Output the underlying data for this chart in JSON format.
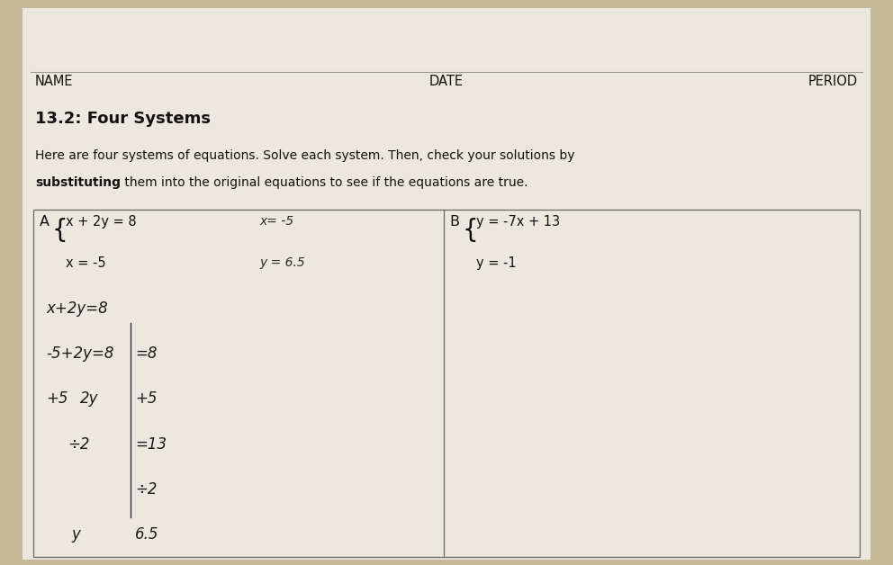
{
  "background_color": "#c8b99a",
  "paper_color": "#ede8df",
  "name_label": "NAME",
  "date_label": "DATE",
  "period_label": "PERIOD",
  "title": "13.2: Four Systems",
  "instructions_line1": "Here are four systems of equations. Solve each system. Then, check your solutions by",
  "instructions_line2_bold": "substituting",
  "instructions_line2_rest": " them into the original equations to see if the equations are true.",
  "section_A_label": "A",
  "section_A_eq1": "x + 2y = 8",
  "section_A_eq2": "x = -5",
  "hw_sol_line1": "x= -5",
  "hw_sol_line2": "y = 6.5",
  "work_line1": "x+2y=8",
  "work_line2": "-5+2y=8",
  "work_line3_left": "+5",
  "work_line3_right": "+5",
  "work_line4_left": "2y",
  "work_line4_right": "=13",
  "work_line5_left": "÷2",
  "work_line5_right": "÷2",
  "work_line6": "y=6.5",
  "section_B_label": "B",
  "section_B_eq1": "y = -7x + 13",
  "section_B_eq2": "y = -1",
  "header_fs": 10.5,
  "title_fs": 13,
  "inst_fs": 10,
  "content_fs": 10.5,
  "hw_fs": 11,
  "work_fs": 12
}
